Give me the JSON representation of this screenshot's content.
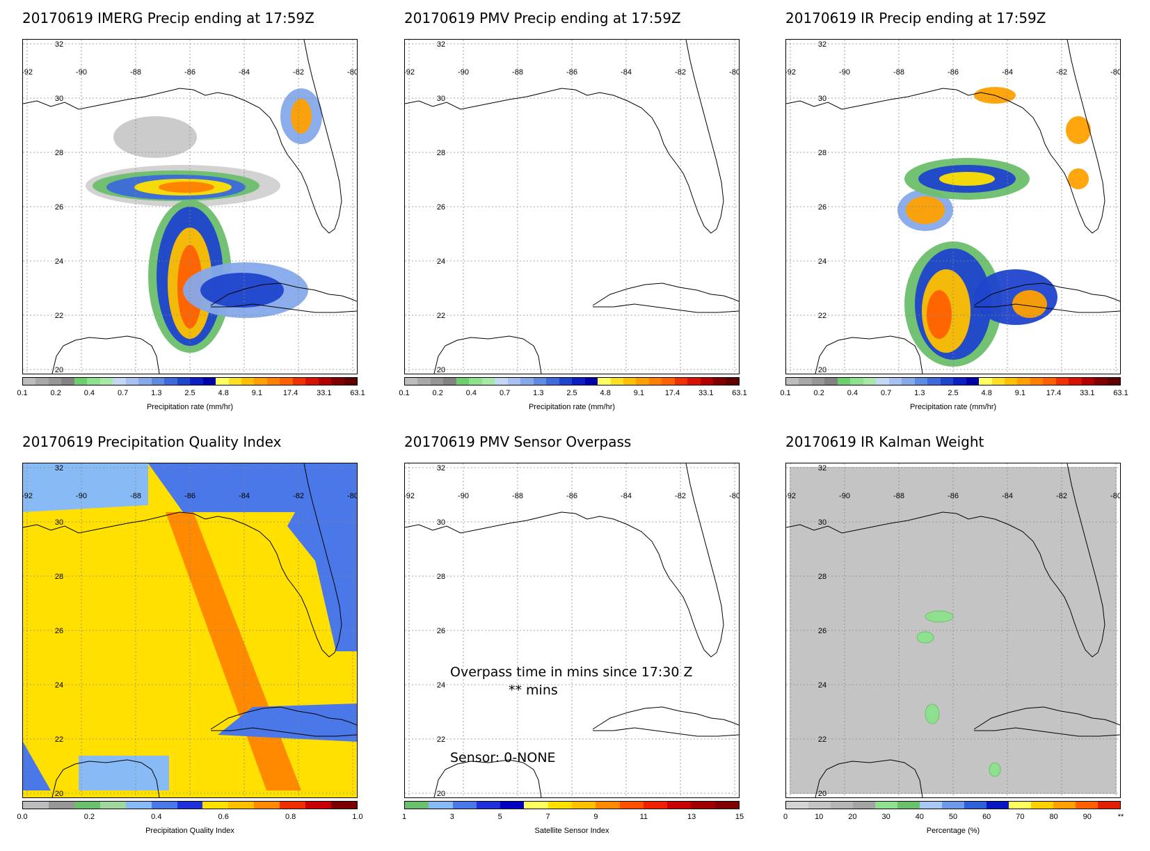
{
  "panels": [
    {
      "title": "20170619 IMERG Precip ending at 17:59Z",
      "colorbar_label": "Precipitation rate (mm/hr)",
      "ticks": [
        "0.1",
        "0.2",
        "0.4",
        "0.7",
        "1.3",
        "2.5",
        "4.8",
        "9.1",
        "17.4",
        "33.1",
        "63.1"
      ]
    },
    {
      "title": "20170619 PMV Precip ending at 17:59Z",
      "colorbar_label": "Precipitation rate (mm/hr)",
      "ticks": [
        "0.1",
        "0.2",
        "0.4",
        "0.7",
        "1.3",
        "2.5",
        "4.8",
        "9.1",
        "17.4",
        "33.1",
        "63.1"
      ]
    },
    {
      "title": "20170619 IR Precip ending at 17:59Z",
      "colorbar_label": "Precipitation rate (mm/hr)",
      "ticks": [
        "0.1",
        "0.2",
        "0.4",
        "0.7",
        "1.3",
        "2.5",
        "4.8",
        "9.1",
        "17.4",
        "33.1",
        "63.1"
      ]
    },
    {
      "title": "20170619 Precipitation Quality Index",
      "colorbar_label": "Precipitation Quality Index",
      "ticks": [
        "0.0",
        "0.2",
        "0.4",
        "0.6",
        "0.8",
        "1.0"
      ]
    },
    {
      "title": "20170619 PMV Sensor Overpass",
      "colorbar_label": "Satellite Sensor Index",
      "ticks": [
        "1",
        "3",
        "5",
        "7",
        "9",
        "11",
        "13",
        "15"
      ],
      "overpass_text": "Overpass time in mins since 17:30 Z",
      "mins_text": "** mins",
      "sensor_text": "Sensor:   0-NONE"
    },
    {
      "title": "20170619 IR Kalman Weight",
      "colorbar_label": "Percentage (%)",
      "ticks": [
        "0",
        "10",
        "20",
        "30",
        "40",
        "50",
        "60",
        "70",
        "80",
        "90",
        "**"
      ]
    }
  ],
  "axes": {
    "lon_labels": [
      "-92",
      "-90",
      "-88",
      "-86",
      "-84",
      "-82",
      "-80"
    ],
    "lat_labels": [
      "32",
      "30",
      "28",
      "26",
      "24",
      "22",
      "20"
    ]
  },
  "colors": {
    "precip_scale": [
      "#bdbdbd",
      "#a8a8a8",
      "#969696",
      "#828282",
      "#6ccf6c",
      "#8ee08e",
      "#a6e8a6",
      "#c4d8f4",
      "#a7c2f0",
      "#86a9ea",
      "#5e8ae0",
      "#3c6ad8",
      "#1f45cc",
      "#0d1fc0",
      "#0000a8",
      "#ffff60",
      "#ffe020",
      "#ffc000",
      "#ffa000",
      "#ff8000",
      "#ff6000",
      "#f03000",
      "#d81000",
      "#b00000",
      "#800000",
      "#600000"
    ],
    "pqi_scale": [
      "#bdbdbd",
      "#969696",
      "#6cbf6c",
      "#9ed89e",
      "#88bbf6",
      "#4a78e8",
      "#1f30d8",
      "#ffe000",
      "#ffc000",
      "#ff8a00",
      "#ee3000",
      "#c80000",
      "#7a0000"
    ],
    "sensor_scale": [
      "#6cbf6c",
      "#88bbf6",
      "#4a78e8",
      "#1f30d8",
      "#0000c0",
      "#ffff60",
      "#ffe000",
      "#ffc000",
      "#ff8a00",
      "#ff5000",
      "#ee2000",
      "#c80000",
      "#a00000",
      "#800000"
    ],
    "kalman_scale": [
      "#d4d4d4",
      "#c4c4c4",
      "#b4b4b4",
      "#a4a4a4",
      "#8ee08e",
      "#6cc06c",
      "#a8c8f4",
      "#6e98ea",
      "#2e60d8",
      "#0818c0",
      "#ffff60",
      "#ffd000",
      "#ffa000",
      "#ff6000",
      "#e02000"
    ]
  }
}
